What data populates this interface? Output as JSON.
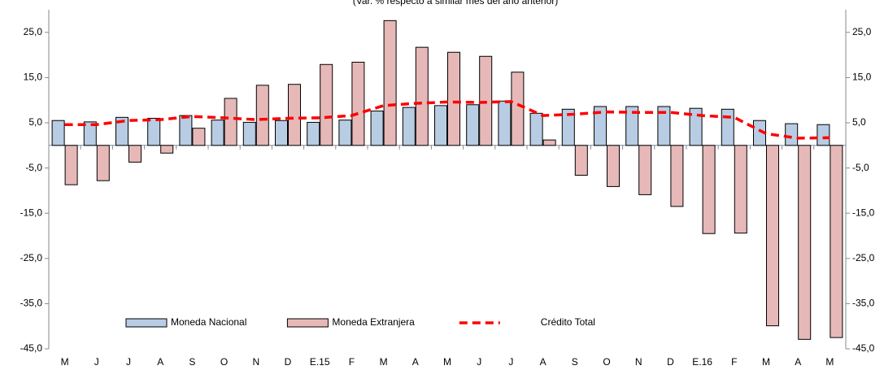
{
  "chart_data": {
    "type": "bar",
    "subtitle": "(Var. % respecto a similar mes del año anterior)",
    "categories": [
      "M",
      "J",
      "J",
      "A",
      "S",
      "O",
      "N",
      "D",
      "E.15",
      "F",
      "M",
      "A",
      "M",
      "J",
      "J",
      "A",
      "S",
      "O",
      "N",
      "D",
      "E.16",
      "F",
      "M",
      "A",
      "M"
    ],
    "series": [
      {
        "name": "Moneda Nacional",
        "kind": "bar",
        "color": "#b8cce4",
        "values": [
          5.5,
          5.2,
          6.2,
          6.0,
          6.6,
          5.6,
          5.1,
          5.5,
          5.1,
          5.6,
          7.6,
          8.4,
          8.8,
          9.0,
          9.8,
          7.1,
          8.0,
          8.6,
          8.6,
          8.6,
          8.2,
          8.0,
          5.5,
          4.8,
          4.6
        ]
      },
      {
        "name": "Moneda Extranjera",
        "kind": "bar",
        "color": "#e6b9b8",
        "values": [
          -8.7,
          -7.8,
          -3.7,
          -1.7,
          3.8,
          10.4,
          13.3,
          13.5,
          17.9,
          18.4,
          27.6,
          21.7,
          20.6,
          19.7,
          16.2,
          1.2,
          -6.6,
          -9.1,
          -10.9,
          -13.5,
          -19.5,
          -19.4,
          -39.9,
          -42.9,
          -42.5
        ]
      },
      {
        "name": "Crédito Total",
        "kind": "line",
        "color": "#ff0000",
        "values": [
          4.6,
          4.6,
          5.5,
          5.7,
          6.4,
          6.1,
          5.7,
          6.0,
          6.1,
          6.6,
          8.8,
          9.3,
          9.6,
          9.5,
          9.7,
          6.6,
          6.9,
          7.4,
          7.3,
          7.3,
          6.6,
          6.2,
          2.6,
          1.6,
          1.7
        ]
      }
    ],
    "ylim": [
      -45,
      30
    ],
    "yticks": [
      {
        "value": -45,
        "label": "-45,0"
      },
      {
        "value": -35,
        "label": "-35,0"
      },
      {
        "value": -25,
        "label": "-25,0"
      },
      {
        "value": -15,
        "label": "-15,0"
      },
      {
        "value": -5,
        "label": "-5,0"
      },
      {
        "value": 5,
        "label": "5,0"
      },
      {
        "value": 15,
        "label": "15,0"
      },
      {
        "value": 25,
        "label": "25,0"
      }
    ],
    "legend": "lower-left"
  }
}
